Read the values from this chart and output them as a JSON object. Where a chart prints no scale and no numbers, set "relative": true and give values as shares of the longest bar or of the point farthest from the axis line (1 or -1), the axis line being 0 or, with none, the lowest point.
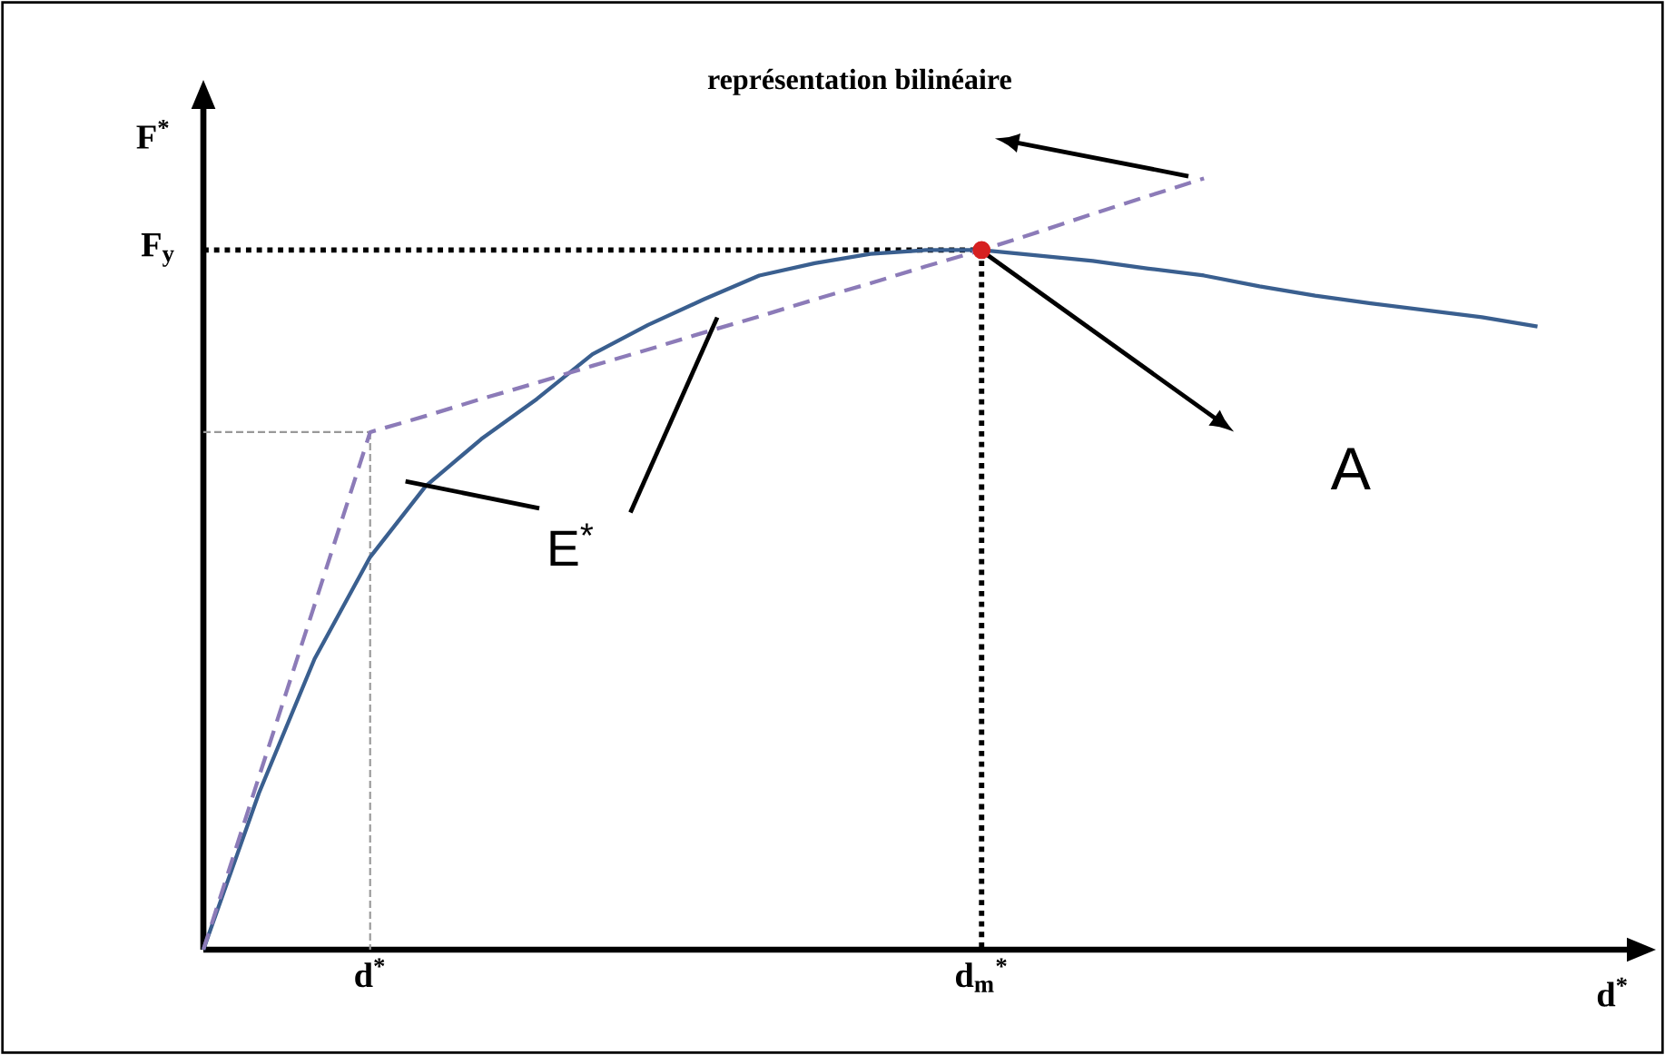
{
  "chart_data": {
    "type": "line",
    "relative": true,
    "xlabel": "d$^{*}$",
    "ylabel": "F$^{*}$",
    "categories": [
      null,
      null,
      null,
      "d$^{*}$",
      null,
      null,
      null,
      null,
      null,
      null,
      null,
      null,
      null,
      null,
      "d$_{m}$$^{*}$",
      null,
      null,
      null,
      null,
      null,
      null,
      null,
      null,
      null,
      null
    ],
    "series": [
      {
        "color": "#3a5f8f",
        "line_style": "solid",
        "values": [
          0,
          0.203,
          0.377,
          0.509,
          0.601,
          0.662,
          0.714,
          0.772,
          0.81,
          0.843,
          0.874,
          0.89,
          0.902,
          0.907,
          0.907,
          0.9,
          0.893,
          0.883,
          0.874,
          0.86,
          0.848,
          0.838,
          0.829,
          0.82,
          0.808
        ]
      },
      {
        "color": "#8c7bb8",
        "line_style": "dashed",
        "values": [
          0,
          0.224,
          0.447,
          0.671,
          0.692,
          0.714,
          0.735,
          0.757,
          0.778,
          0.8,
          0.821,
          0.843,
          0.864,
          0.886,
          0.907,
          0.93,
          0.954,
          0.977,
          1,
          null,
          null,
          null,
          null,
          null,
          null
        ]
      },
      {
        "type": "scatter",
        "color": "#d62020",
        "values": [
          null,
          null,
          null,
          null,
          null,
          null,
          null,
          null,
          null,
          null,
          null,
          null,
          null,
          null,
          0.907,
          null,
          null,
          null,
          null,
          null,
          null,
          null,
          null,
          null,
          null
        ]
      }
    ],
    "ref_lines": [
      {
        "axis": "y",
        "value": 0.907,
        "color": "#000000",
        "line_style": "dotted"
      },
      {
        "axis": "y",
        "value": 0.671,
        "color": "#999999",
        "line_style": "dashed"
      }
    ],
    "annotations": [
      "F$_{y}$",
      "représentation bilinéaire",
      "A",
      "E$^{*}$"
    ]
  }
}
